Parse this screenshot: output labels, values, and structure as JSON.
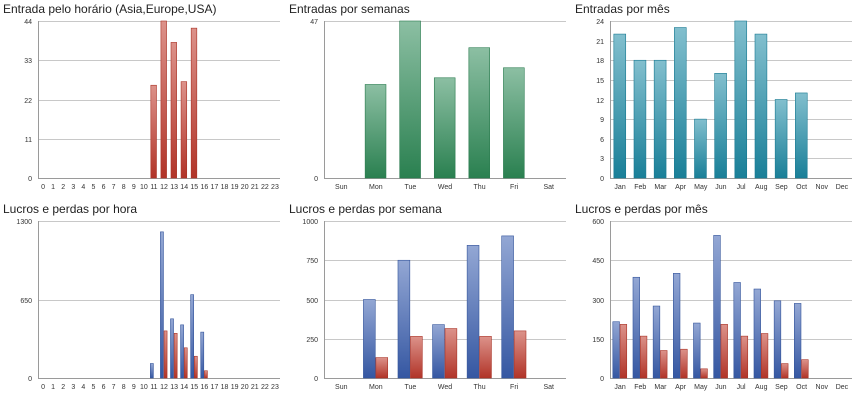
{
  "chart_data": [
    {
      "type": "bar",
      "title": "Entrada pelo horário (Asia,Europe,USA)",
      "categories": [
        "0",
        "1",
        "2",
        "3",
        "4",
        "5",
        "6",
        "7",
        "8",
        "9",
        "10",
        "11",
        "12",
        "13",
        "14",
        "15",
        "16",
        "17",
        "18",
        "19",
        "20",
        "21",
        "22",
        "23"
      ],
      "series": [
        {
          "values": [
            0,
            0,
            0,
            0,
            0,
            0,
            0,
            0,
            0,
            0,
            0,
            26,
            44,
            38,
            27,
            42,
            0,
            0,
            0,
            0,
            0,
            0,
            0,
            0
          ],
          "color": "#c0392b"
        }
      ],
      "ylim": [
        0,
        44
      ],
      "yticks": [
        "0",
        "11",
        "22",
        "33",
        "44"
      ],
      "grid": true
    },
    {
      "type": "bar",
      "title": "Entradas por semanas",
      "categories": [
        "Sun",
        "Mon",
        "Tue",
        "Wed",
        "Thu",
        "Fri",
        "Sat"
      ],
      "series": [
        {
          "values": [
            0,
            28,
            47,
            30,
            39,
            33,
            0
          ],
          "color": "#2e8b57"
        }
      ],
      "ylim": [
        0,
        47
      ],
      "yticks": [
        "0",
        "47"
      ],
      "grid": true
    },
    {
      "type": "bar",
      "title": "Entradas por mês",
      "categories": [
        "Jan",
        "Feb",
        "Mar",
        "Apr",
        "May",
        "Jun",
        "Jul",
        "Aug",
        "Sep",
        "Oct",
        "Nov",
        "Dec"
      ],
      "series": [
        {
          "values": [
            22,
            18,
            18,
            23,
            9,
            16,
            24,
            22,
            12,
            13,
            0,
            0
          ],
          "color": "#1b8aa5"
        }
      ],
      "ylim": [
        0,
        24
      ],
      "yticks": [
        "0",
        "3",
        "6",
        "9",
        "12",
        "15",
        "18",
        "21",
        "24"
      ],
      "grid": true
    },
    {
      "type": "bar",
      "title": "Lucros e perdas por hora",
      "categories": [
        "0",
        "1",
        "2",
        "3",
        "4",
        "5",
        "6",
        "7",
        "8",
        "9",
        "10",
        "11",
        "12",
        "13",
        "14",
        "15",
        "16",
        "17",
        "18",
        "19",
        "20",
        "21",
        "22",
        "23"
      ],
      "series": [
        {
          "values": [
            0,
            0,
            0,
            0,
            0,
            0,
            0,
            0,
            0,
            0,
            0,
            120,
            1210,
            490,
            440,
            690,
            380,
            0,
            0,
            0,
            0,
            0,
            0,
            0
          ],
          "color": "#3a5fb0"
        },
        {
          "values": [
            0,
            0,
            0,
            0,
            0,
            0,
            0,
            0,
            0,
            0,
            0,
            0,
            390,
            370,
            250,
            180,
            60,
            0,
            0,
            0,
            0,
            0,
            0,
            0
          ],
          "color": "#c0392b"
        }
      ],
      "ylim": [
        0,
        1300
      ],
      "yticks": [
        "0",
        "650",
        "1300"
      ],
      "grid": true
    },
    {
      "type": "bar",
      "title": "Lucros e perdas por semana",
      "categories": [
        "Sun",
        "Mon",
        "Tue",
        "Wed",
        "Thu",
        "Fri",
        "Sat"
      ],
      "series": [
        {
          "values": [
            0,
            500,
            750,
            340,
            845,
            905,
            0
          ],
          "color": "#3a5fb0"
        },
        {
          "values": [
            0,
            130,
            265,
            315,
            265,
            300,
            0
          ],
          "color": "#c0392b"
        }
      ],
      "ylim": [
        0,
        1000
      ],
      "yticks": [
        "0",
        "250",
        "500",
        "750",
        "1000"
      ],
      "grid": true
    },
    {
      "type": "bar",
      "title": "Lucros e perdas por mês",
      "categories": [
        "Jan",
        "Feb",
        "Mar",
        "Apr",
        "May",
        "Jun",
        "Jul",
        "Aug",
        "Sep",
        "Oct",
        "Nov",
        "Dec"
      ],
      "series": [
        {
          "values": [
            215,
            385,
            275,
            400,
            210,
            545,
            365,
            340,
            295,
            285,
            0,
            0
          ],
          "color": "#3a5fb0"
        },
        {
          "values": [
            205,
            160,
            105,
            110,
            35,
            205,
            160,
            170,
            55,
            70,
            0,
            0
          ],
          "color": "#c0392b"
        }
      ],
      "ylim": [
        0,
        600
      ],
      "yticks": [
        "0",
        "150",
        "300",
        "450",
        "600"
      ],
      "grid": true
    }
  ]
}
